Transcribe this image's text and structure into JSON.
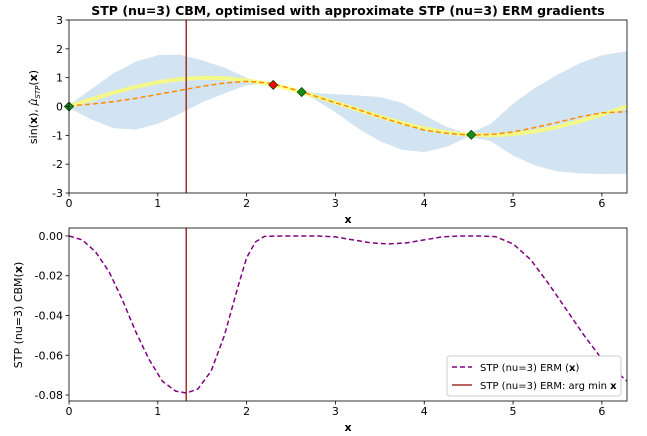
{
  "chart_data": [
    {
      "type": "line",
      "title": "STP (nu=3) CBM, optimised with approximate STP (nu=3) ERM gradients",
      "xlabel": "x",
      "ylabel": "sin(x), μ̂_STP(x)",
      "xlim": [
        0,
        6.283
      ],
      "ylim": [
        -3,
        3
      ],
      "xticks": [
        "0",
        "1",
        "2",
        "3",
        "4",
        "5",
        "6"
      ],
      "yticks": [
        "-3",
        "-2",
        "-1",
        "0",
        "1",
        "2",
        "3"
      ],
      "grid": false,
      "colors": {
        "true_fn": "#ffff66",
        "mean": "#ff8c00",
        "band": "#a6c8e4",
        "vline": "#a0302a",
        "obs": "#1a8a1a",
        "next": "#ff0000"
      },
      "x": [
        0.0,
        0.25,
        0.5,
        0.75,
        1.0,
        1.25,
        1.5,
        1.75,
        2.0,
        2.25,
        2.5,
        2.75,
        3.0,
        3.25,
        3.5,
        3.75,
        4.0,
        4.25,
        4.5,
        4.75,
        5.0,
        5.25,
        5.5,
        5.75,
        6.0,
        6.283
      ],
      "series": [
        {
          "values": [
            0.0,
            0.25,
            0.48,
            0.68,
            0.84,
            0.95,
            1.0,
            0.98,
            0.91,
            0.78,
            0.6,
            0.38,
            0.14,
            -0.11,
            -0.35,
            -0.57,
            -0.76,
            -0.9,
            -0.98,
            -1.0,
            -0.96,
            -0.86,
            -0.71,
            -0.51,
            -0.28,
            0.0
          ]
        },
        {
          "values": [
            0.02,
            0.08,
            0.17,
            0.28,
            0.42,
            0.56,
            0.7,
            0.81,
            0.87,
            0.82,
            0.62,
            0.38,
            0.13,
            -0.1,
            -0.36,
            -0.6,
            -0.82,
            -0.93,
            -0.99,
            -0.97,
            -0.88,
            -0.73,
            -0.55,
            -0.36,
            -0.22,
            -0.18
          ]
        }
      ],
      "band_upper": [
        0.05,
        0.6,
        1.15,
        1.55,
        1.78,
        1.8,
        1.6,
        1.35,
        1.0,
        0.78,
        0.62,
        0.48,
        0.42,
        0.38,
        0.33,
        0.13,
        -0.3,
        -0.7,
        -0.95,
        -0.6,
        0.1,
        0.65,
        1.1,
        1.5,
        1.78,
        1.92
      ],
      "band_lower": [
        -0.05,
        -0.45,
        -0.75,
        -0.8,
        -0.6,
        -0.25,
        0.15,
        0.45,
        0.74,
        0.8,
        0.62,
        0.28,
        -0.2,
        -0.75,
        -1.2,
        -1.5,
        -1.58,
        -1.4,
        -1.05,
        -1.2,
        -1.7,
        -2.05,
        -2.25,
        -2.32,
        -2.34,
        -2.33
      ],
      "observations": [
        [
          0.0,
          0.0
        ],
        [
          2.62,
          0.5
        ],
        [
          4.53,
          -0.98
        ]
      ],
      "next_point": [
        2.3,
        0.75
      ],
      "vline_x": 1.32
    },
    {
      "type": "line",
      "xlabel": "x",
      "ylabel": "STP (nu=3) CBM(x)",
      "xlim": [
        0,
        6.283
      ],
      "ylim": [
        -0.083,
        0.004
      ],
      "xticks": [
        "0",
        "1",
        "2",
        "3",
        "4",
        "5",
        "6"
      ],
      "yticks": [
        "0.00",
        "-0.02",
        "-0.04",
        "-0.06",
        "-0.08"
      ],
      "legend_placement": "lower-right",
      "colors": {
        "erm": "#800080",
        "vline": "#a0302a"
      },
      "series": [
        {
          "name": "STP (nu=3) ERM (x)",
          "x": [
            0.0,
            0.15,
            0.3,
            0.45,
            0.6,
            0.75,
            0.9,
            1.05,
            1.2,
            1.32,
            1.45,
            1.6,
            1.75,
            1.9,
            2.0,
            2.1,
            2.2,
            2.4,
            2.6,
            2.8,
            3.0,
            3.2,
            3.4,
            3.6,
            3.8,
            4.0,
            4.2,
            4.4,
            4.6,
            4.8,
            5.0,
            5.2,
            5.4,
            5.6,
            5.8,
            6.0,
            6.283
          ],
          "values": [
            0.0,
            -0.002,
            -0.008,
            -0.018,
            -0.032,
            -0.048,
            -0.062,
            -0.073,
            -0.078,
            -0.079,
            -0.077,
            -0.068,
            -0.05,
            -0.026,
            -0.011,
            -0.003,
            -0.0002,
            0.0,
            0.0,
            0.0,
            -0.0005,
            -0.002,
            -0.0035,
            -0.004,
            -0.0035,
            -0.002,
            -0.0005,
            0.0,
            0.0,
            -0.0003,
            -0.004,
            -0.012,
            -0.024,
            -0.037,
            -0.05,
            -0.062,
            -0.073
          ]
        }
      ],
      "vline": {
        "name": "STP (nu=3) ERM: arg min x",
        "x": 1.32
      }
    }
  ]
}
